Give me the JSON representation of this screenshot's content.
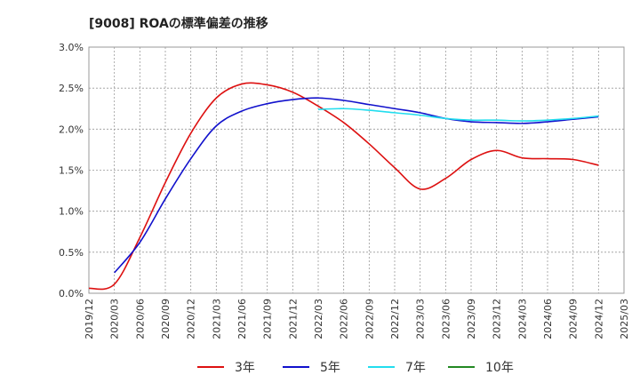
{
  "chart_data": {
    "type": "line",
    "title": "[9008]  ROAの標準偏差の推移",
    "xlabel": "",
    "ylabel": "",
    "x": [
      "2019/12",
      "2020/03",
      "2020/06",
      "2020/09",
      "2020/12",
      "2021/03",
      "2021/06",
      "2021/09",
      "2021/12",
      "2022/03",
      "2022/06",
      "2022/09",
      "2022/12",
      "2023/03",
      "2023/06",
      "2023/09",
      "2023/12",
      "2024/03",
      "2024/06",
      "2024/09",
      "2024/12",
      "2025/03"
    ],
    "x_ticks": [
      "2019/12",
      "2020/03",
      "2020/06",
      "2020/09",
      "2020/12",
      "2021/03",
      "2021/06",
      "2021/09",
      "2021/12",
      "2022/03",
      "2022/06",
      "2022/09",
      "2022/12",
      "2023/03",
      "2023/06",
      "2023/09",
      "2023/12",
      "2024/03",
      "2024/06",
      "2024/09",
      "2024/12",
      "2025/03"
    ],
    "y_ticks": [
      "0.0%",
      "0.5%",
      "1.0%",
      "1.5%",
      "2.0%",
      "2.5%",
      "3.0%"
    ],
    "ylim": [
      0,
      3.0
    ],
    "grid": true,
    "legend_position": "bottom",
    "series": [
      {
        "name": "3年",
        "color": "#dd1111",
        "values": [
          0.06,
          0.11,
          0.68,
          1.35,
          1.95,
          2.38,
          2.55,
          2.54,
          2.45,
          2.28,
          2.08,
          1.82,
          1.53,
          1.27,
          1.4,
          1.63,
          1.74,
          1.65,
          1.64,
          1.63,
          1.56,
          null
        ]
      },
      {
        "name": "5年",
        "color": "#1111cc",
        "values": [
          null,
          0.25,
          0.62,
          1.15,
          1.64,
          2.04,
          2.22,
          2.31,
          2.36,
          2.38,
          2.35,
          2.3,
          2.25,
          2.2,
          2.13,
          2.09,
          2.08,
          2.07,
          2.09,
          2.12,
          2.15,
          null
        ]
      },
      {
        "name": "7年",
        "color": "#22ddee",
        "values": [
          null,
          null,
          null,
          null,
          null,
          null,
          null,
          null,
          null,
          2.24,
          2.25,
          2.23,
          2.2,
          2.17,
          2.13,
          2.11,
          2.11,
          2.1,
          2.11,
          2.13,
          2.16,
          null
        ]
      },
      {
        "name": "10年",
        "color": "#228822",
        "values": [
          null,
          null,
          null,
          null,
          null,
          null,
          null,
          null,
          null,
          null,
          null,
          null,
          null,
          null,
          null,
          null,
          null,
          null,
          null,
          null,
          null,
          null
        ]
      }
    ]
  }
}
